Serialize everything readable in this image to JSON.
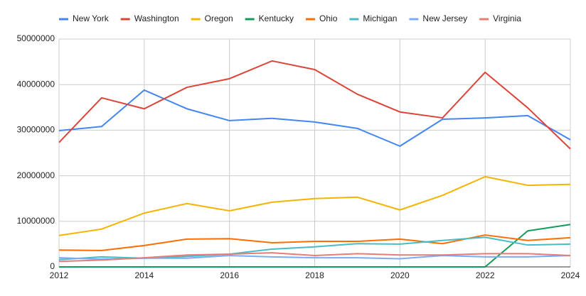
{
  "chart_data": {
    "type": "line",
    "x": [
      2012,
      2013,
      2014,
      2015,
      2016,
      2017,
      2018,
      2019,
      2020,
      2021,
      2022,
      2023,
      2024
    ],
    "series": [
      {
        "name": "New York",
        "color": "#4285f4",
        "values": [
          29900000,
          30800000,
          38800000,
          34700000,
          32100000,
          32600000,
          31800000,
          30400000,
          26500000,
          32400000,
          32700000,
          33200000,
          27900000
        ]
      },
      {
        "name": "Washington",
        "color": "#db4437",
        "values": [
          27300000,
          37100000,
          34700000,
          39400000,
          41300000,
          45200000,
          43300000,
          37900000,
          34000000,
          32700000,
          42700000,
          34900000,
          25900000
        ]
      },
      {
        "name": "Oregon",
        "color": "#f4b400",
        "values": [
          6900000,
          8300000,
          11800000,
          13900000,
          12300000,
          14200000,
          15000000,
          15300000,
          12500000,
          15700000,
          19800000,
          17900000,
          18100000
        ]
      },
      {
        "name": "Kentucky",
        "color": "#0f9d58",
        "values": [
          0,
          0,
          0,
          0,
          0,
          0,
          0,
          0,
          0,
          0,
          0,
          7900000,
          9300000
        ]
      },
      {
        "name": "Ohio",
        "color": "#ff6d01",
        "values": [
          3700000,
          3600000,
          4700000,
          6100000,
          6200000,
          5300000,
          5600000,
          5600000,
          6100000,
          5100000,
          7000000,
          5800000,
          6400000
        ]
      },
      {
        "name": "Michigan",
        "color": "#46bdc6",
        "values": [
          1600000,
          2200000,
          1900000,
          2300000,
          2800000,
          3900000,
          4400000,
          5100000,
          5000000,
          5800000,
          6500000,
          4800000,
          5000000
        ]
      },
      {
        "name": "New Jersey",
        "color": "#7baaf7",
        "values": [
          2000000,
          1700000,
          1900000,
          1900000,
          2500000,
          2200000,
          2000000,
          2000000,
          1800000,
          2500000,
          2200000,
          2200000,
          2500000
        ]
      },
      {
        "name": "Virginia",
        "color": "#e67c73",
        "values": [
          1200000,
          1500000,
          2000000,
          2600000,
          2800000,
          3100000,
          2500000,
          2900000,
          2600000,
          2600000,
          2900000,
          2900000,
          2500000
        ]
      }
    ],
    "xlim": [
      2012,
      2024
    ],
    "xticks": [
      2012,
      2014,
      2016,
      2018,
      2020,
      2022,
      2024
    ],
    "ylim": [
      0,
      50000000
    ],
    "yticks": [
      0,
      10000000,
      20000000,
      30000000,
      40000000,
      50000000
    ],
    "grid": true,
    "legend": "top"
  }
}
